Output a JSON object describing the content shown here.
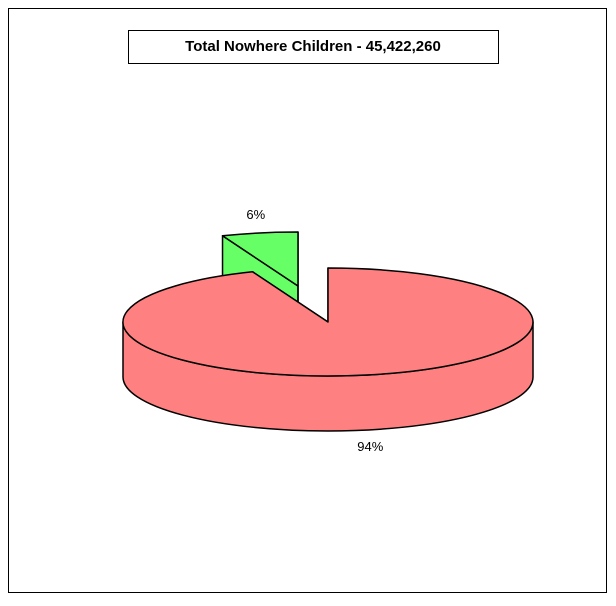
{
  "chart_data": {
    "type": "pie",
    "title": "Total Nowhere Children -  45,422,260",
    "values": [
      94,
      6
    ],
    "value_labels": [
      "94%",
      "6%"
    ],
    "colors": [
      "#ff8080",
      "#66ff66"
    ],
    "explode": [
      false,
      true
    ]
  }
}
